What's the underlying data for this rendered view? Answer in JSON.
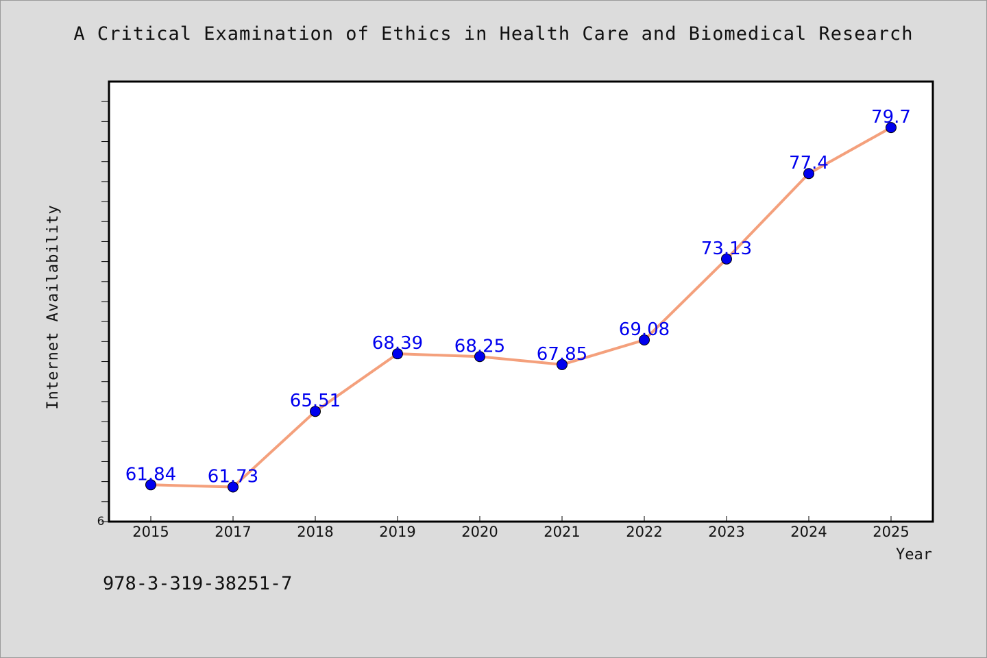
{
  "chart_data": {
    "type": "line",
    "title": "A Critical Examination of Ethics in Health Care and Biomedical Research",
    "xlabel": "Year",
    "ylabel": "Internet Availability",
    "categories": [
      "2015",
      "2017",
      "2018",
      "2019",
      "2020",
      "2021",
      "2022",
      "2023",
      "2024",
      "2025"
    ],
    "values": [
      61.84,
      61.73,
      65.51,
      68.39,
      68.25,
      67.85,
      69.08,
      73.13,
      77.4,
      79.7
    ],
    "data_labels": [
      "61.84",
      "61.73",
      "65.51",
      "68.39",
      "68.25",
      "67.85",
      "69.08",
      "73.13",
      "77.4",
      "79.7"
    ],
    "ytick_label": "6",
    "ylim": [
      60,
      82
    ],
    "grid": false,
    "line_color": "#f4a07c",
    "marker_color": "#0000ee",
    "label_color": "#0000ee"
  },
  "footer": {
    "isbn": "978-3-319-38251-7"
  }
}
